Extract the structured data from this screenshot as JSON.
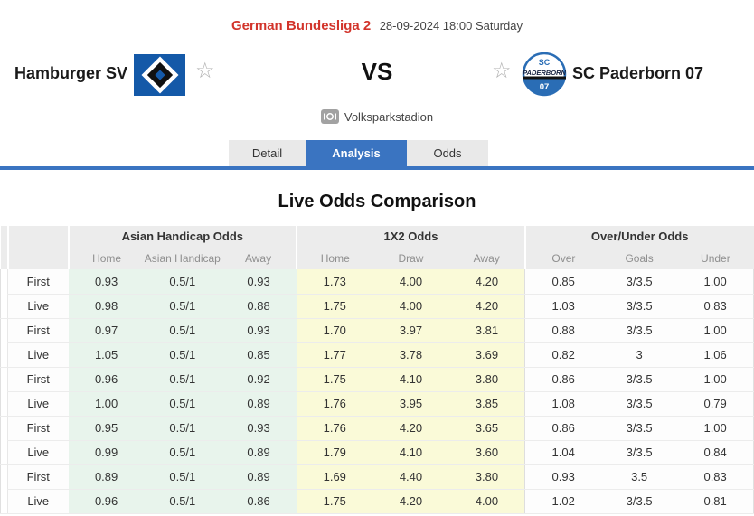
{
  "header": {
    "league": "German Bundesliga 2",
    "datetime": "28-09-2024 18:00 Saturday",
    "home_team": "Hamburger SV",
    "away_team": "SC Paderborn 07",
    "vs_label": "VS",
    "venue": "Volksparkstadion",
    "paderborn_crest": {
      "top_text": "SC",
      "band_text": "PADERBORN",
      "bottom_text": "07"
    }
  },
  "icons": {
    "venue": "stadium-icon",
    "favorite": "star-outline-icon",
    "home_crest": "hamburger-sv-crest",
    "away_crest": "sc-paderborn-crest"
  },
  "tabs": [
    {
      "label": "Detail",
      "active": false
    },
    {
      "label": "Analysis",
      "active": true
    },
    {
      "label": "Odds",
      "active": false
    }
  ],
  "section_title": "Live Odds Comparison",
  "table": {
    "groups": [
      {
        "label": "Asian Handicap Odds",
        "columns": [
          "Home",
          "Asian Handicap",
          "Away"
        ]
      },
      {
        "label": "1X2 Odds",
        "columns": [
          "Home",
          "Draw",
          "Away"
        ]
      },
      {
        "label": "Over/Under Odds",
        "columns": [
          "Over",
          "Goals",
          "Under"
        ]
      }
    ],
    "rows": [
      {
        "type": "First",
        "ah": [
          "0.93",
          "0.5/1",
          "0.93"
        ],
        "x12": [
          "1.73",
          "4.00",
          "4.20"
        ],
        "ou": [
          "0.85",
          "3/3.5",
          "1.00"
        ]
      },
      {
        "type": "Live",
        "ah": [
          "0.98",
          "0.5/1",
          "0.88"
        ],
        "x12": [
          "1.75",
          "4.00",
          "4.20"
        ],
        "ou": [
          "1.03",
          "3/3.5",
          "0.83"
        ]
      },
      {
        "type": "First",
        "ah": [
          "0.97",
          "0.5/1",
          "0.93"
        ],
        "x12": [
          "1.70",
          "3.97",
          "3.81"
        ],
        "ou": [
          "0.88",
          "3/3.5",
          "1.00"
        ]
      },
      {
        "type": "Live",
        "ah": [
          "1.05",
          "0.5/1",
          "0.85"
        ],
        "x12": [
          "1.77",
          "3.78",
          "3.69"
        ],
        "ou": [
          "0.82",
          "3",
          "1.06"
        ]
      },
      {
        "type": "First",
        "ah": [
          "0.96",
          "0.5/1",
          "0.92"
        ],
        "x12": [
          "1.75",
          "4.10",
          "3.80"
        ],
        "ou": [
          "0.86",
          "3/3.5",
          "1.00"
        ]
      },
      {
        "type": "Live",
        "ah": [
          "1.00",
          "0.5/1",
          "0.89"
        ],
        "x12": [
          "1.76",
          "3.95",
          "3.85"
        ],
        "ou": [
          "1.08",
          "3/3.5",
          "0.79"
        ]
      },
      {
        "type": "First",
        "ah": [
          "0.95",
          "0.5/1",
          "0.93"
        ],
        "x12": [
          "1.76",
          "4.20",
          "3.65"
        ],
        "ou": [
          "0.86",
          "3/3.5",
          "1.00"
        ]
      },
      {
        "type": "Live",
        "ah": [
          "0.99",
          "0.5/1",
          "0.89"
        ],
        "x12": [
          "1.79",
          "4.10",
          "3.60"
        ],
        "ou": [
          "1.04",
          "3/3.5",
          "0.84"
        ]
      },
      {
        "type": "First",
        "ah": [
          "0.89",
          "0.5/1",
          "0.89"
        ],
        "x12": [
          "1.69",
          "4.40",
          "3.80"
        ],
        "ou": [
          "0.93",
          "3.5",
          "0.83"
        ]
      },
      {
        "type": "Live",
        "ah": [
          "0.96",
          "0.5/1",
          "0.86"
        ],
        "x12": [
          "1.75",
          "4.20",
          "4.00"
        ],
        "ou": [
          "1.02",
          "3/3.5",
          "0.81"
        ]
      }
    ]
  },
  "colors": {
    "accent_blue": "#3a74c1",
    "league_red": "#d2342b",
    "hsv_blue": "#1459a8",
    "paderborn_blue": "#2a6db5",
    "ah_bg": "#e8f4ec",
    "x12_bg": "#fafad8",
    "header_gray": "#ececec"
  }
}
